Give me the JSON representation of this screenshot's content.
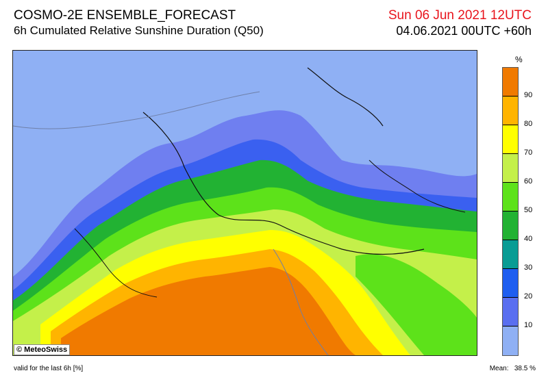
{
  "header": {
    "title": "COSMO-2E ENSEMBLE_FORECAST",
    "subtitle": "6h Cumulated Relative Sunshine Duration (Q50)",
    "valid_time": "Sun 06 Jun 2021 12UTC",
    "run_time": "04.06.2021 00UTC +60h"
  },
  "map": {
    "copyright": "© MeteoSwiss",
    "background_color": "#8fb0f4"
  },
  "legend": {
    "unit": "%",
    "ticks": [
      "90",
      "80",
      "70",
      "60",
      "50",
      "40",
      "30",
      "20",
      "10"
    ],
    "colors": [
      "#f07a00",
      "#ffb400",
      "#ffff00",
      "#c4f04a",
      "#5de21a",
      "#22b233",
      "#099c94",
      "#1e5ef0",
      "#5a6ff0",
      "#8fb0f4"
    ]
  },
  "footer": {
    "valid_note": "valid for the last 6h [%]",
    "mean_label": "Mean:",
    "mean_value": "38.5 %"
  }
}
